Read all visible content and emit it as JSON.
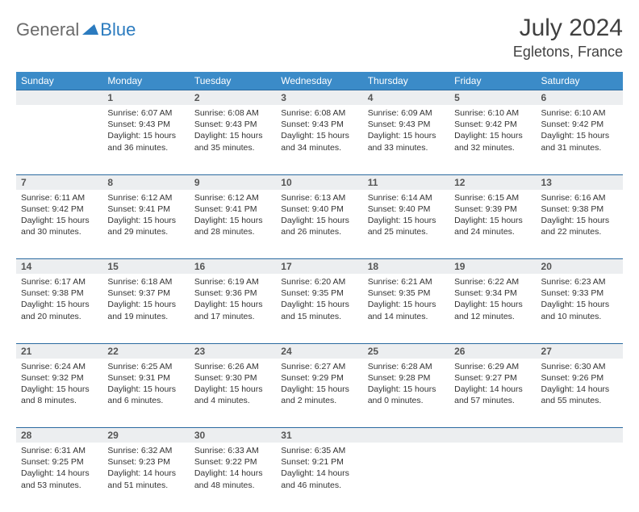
{
  "brand": {
    "part1": "General",
    "part2": "Blue"
  },
  "title": "July 2024",
  "location": "Egletons, France",
  "colors": {
    "header_bg": "#3b8bc8",
    "header_text": "#ffffff",
    "daynum_bg": "#eceef0",
    "rule": "#2b6aa0",
    "logo_gray": "#6b6b6b",
    "logo_blue": "#2b7bbf"
  },
  "weekdays": [
    "Sunday",
    "Monday",
    "Tuesday",
    "Wednesday",
    "Thursday",
    "Friday",
    "Saturday"
  ],
  "weeks": [
    [
      null,
      {
        "n": "1",
        "sr": "6:07 AM",
        "ss": "9:43 PM",
        "dl": "15 hours and 36 minutes."
      },
      {
        "n": "2",
        "sr": "6:08 AM",
        "ss": "9:43 PM",
        "dl": "15 hours and 35 minutes."
      },
      {
        "n": "3",
        "sr": "6:08 AM",
        "ss": "9:43 PM",
        "dl": "15 hours and 34 minutes."
      },
      {
        "n": "4",
        "sr": "6:09 AM",
        "ss": "9:43 PM",
        "dl": "15 hours and 33 minutes."
      },
      {
        "n": "5",
        "sr": "6:10 AM",
        "ss": "9:42 PM",
        "dl": "15 hours and 32 minutes."
      },
      {
        "n": "6",
        "sr": "6:10 AM",
        "ss": "9:42 PM",
        "dl": "15 hours and 31 minutes."
      }
    ],
    [
      {
        "n": "7",
        "sr": "6:11 AM",
        "ss": "9:42 PM",
        "dl": "15 hours and 30 minutes."
      },
      {
        "n": "8",
        "sr": "6:12 AM",
        "ss": "9:41 PM",
        "dl": "15 hours and 29 minutes."
      },
      {
        "n": "9",
        "sr": "6:12 AM",
        "ss": "9:41 PM",
        "dl": "15 hours and 28 minutes."
      },
      {
        "n": "10",
        "sr": "6:13 AM",
        "ss": "9:40 PM",
        "dl": "15 hours and 26 minutes."
      },
      {
        "n": "11",
        "sr": "6:14 AM",
        "ss": "9:40 PM",
        "dl": "15 hours and 25 minutes."
      },
      {
        "n": "12",
        "sr": "6:15 AM",
        "ss": "9:39 PM",
        "dl": "15 hours and 24 minutes."
      },
      {
        "n": "13",
        "sr": "6:16 AM",
        "ss": "9:38 PM",
        "dl": "15 hours and 22 minutes."
      }
    ],
    [
      {
        "n": "14",
        "sr": "6:17 AM",
        "ss": "9:38 PM",
        "dl": "15 hours and 20 minutes."
      },
      {
        "n": "15",
        "sr": "6:18 AM",
        "ss": "9:37 PM",
        "dl": "15 hours and 19 minutes."
      },
      {
        "n": "16",
        "sr": "6:19 AM",
        "ss": "9:36 PM",
        "dl": "15 hours and 17 minutes."
      },
      {
        "n": "17",
        "sr": "6:20 AM",
        "ss": "9:35 PM",
        "dl": "15 hours and 15 minutes."
      },
      {
        "n": "18",
        "sr": "6:21 AM",
        "ss": "9:35 PM",
        "dl": "15 hours and 14 minutes."
      },
      {
        "n": "19",
        "sr": "6:22 AM",
        "ss": "9:34 PM",
        "dl": "15 hours and 12 minutes."
      },
      {
        "n": "20",
        "sr": "6:23 AM",
        "ss": "9:33 PM",
        "dl": "15 hours and 10 minutes."
      }
    ],
    [
      {
        "n": "21",
        "sr": "6:24 AM",
        "ss": "9:32 PM",
        "dl": "15 hours and 8 minutes."
      },
      {
        "n": "22",
        "sr": "6:25 AM",
        "ss": "9:31 PM",
        "dl": "15 hours and 6 minutes."
      },
      {
        "n": "23",
        "sr": "6:26 AM",
        "ss": "9:30 PM",
        "dl": "15 hours and 4 minutes."
      },
      {
        "n": "24",
        "sr": "6:27 AM",
        "ss": "9:29 PM",
        "dl": "15 hours and 2 minutes."
      },
      {
        "n": "25",
        "sr": "6:28 AM",
        "ss": "9:28 PM",
        "dl": "15 hours and 0 minutes."
      },
      {
        "n": "26",
        "sr": "6:29 AM",
        "ss": "9:27 PM",
        "dl": "14 hours and 57 minutes."
      },
      {
        "n": "27",
        "sr": "6:30 AM",
        "ss": "9:26 PM",
        "dl": "14 hours and 55 minutes."
      }
    ],
    [
      {
        "n": "28",
        "sr": "6:31 AM",
        "ss": "9:25 PM",
        "dl": "14 hours and 53 minutes."
      },
      {
        "n": "29",
        "sr": "6:32 AM",
        "ss": "9:23 PM",
        "dl": "14 hours and 51 minutes."
      },
      {
        "n": "30",
        "sr": "6:33 AM",
        "ss": "9:22 PM",
        "dl": "14 hours and 48 minutes."
      },
      {
        "n": "31",
        "sr": "6:35 AM",
        "ss": "9:21 PM",
        "dl": "14 hours and 46 minutes."
      },
      null,
      null,
      null
    ]
  ],
  "labels": {
    "sunrise": "Sunrise: ",
    "sunset": "Sunset: ",
    "daylight": "Daylight: "
  }
}
